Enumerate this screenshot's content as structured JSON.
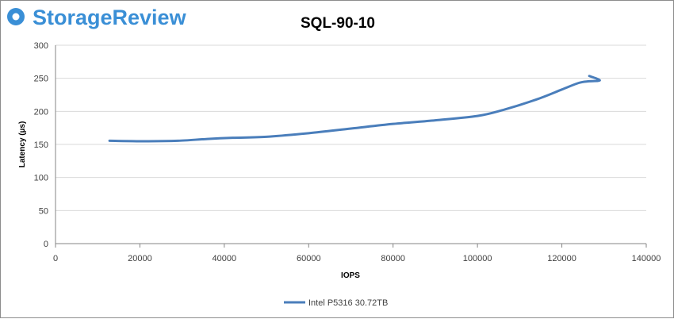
{
  "brand": {
    "name": "StorageReview",
    "color": "#3a8fd6",
    "icon": "storagereview-logo-icon"
  },
  "chart_data": {
    "type": "line",
    "title": "SQL-90-10",
    "xlabel": "IOPS",
    "ylabel": "Latency (µs)",
    "xlim": [
      0,
      140000
    ],
    "ylim": [
      0,
      300
    ],
    "x_ticks": [
      0,
      20000,
      40000,
      60000,
      80000,
      100000,
      120000,
      140000
    ],
    "y_ticks": [
      0,
      50,
      100,
      150,
      200,
      250,
      300
    ],
    "grid": "horizontal",
    "legend_position": "bottom",
    "series": [
      {
        "name": "Intel P5316 30.72TB",
        "color": "#4a7ebb",
        "x": [
          12800,
          22000,
          29000,
          36000,
          42000,
          50000,
          60000,
          70000,
          80000,
          90000,
          100000,
          106000,
          114000,
          120000,
          124000,
          126500,
          129000,
          126500
        ],
        "y": [
          155.5,
          154.8,
          155.5,
          158.3,
          160,
          161.5,
          167,
          174,
          181,
          186.5,
          193,
          202,
          218,
          233,
          243,
          245.5,
          247,
          253.5
        ]
      }
    ]
  }
}
